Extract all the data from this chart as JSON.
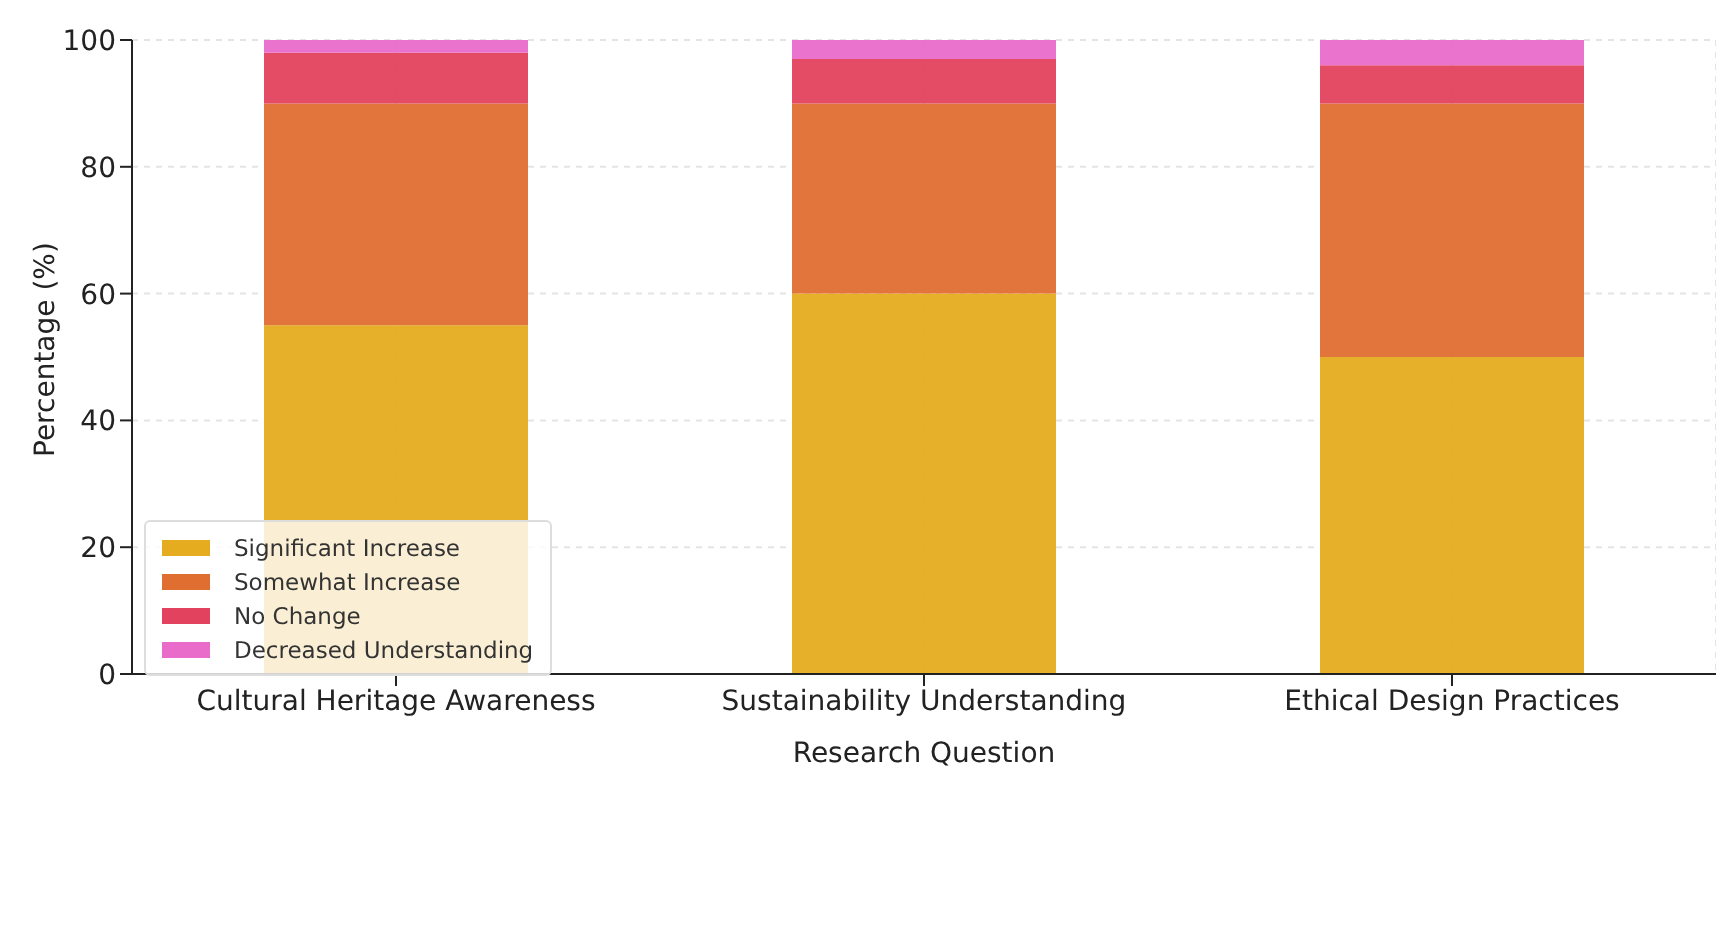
{
  "chart_data": {
    "type": "bar",
    "stacked": true,
    "xlabel": "Research Question",
    "ylabel": "Percentage (%)",
    "categories": [
      "Cultural Heritage Awareness",
      "Sustainability Understanding",
      "Ethical Design Practices"
    ],
    "series": [
      {
        "name": "Significant Increase",
        "color": "#e6ac1f",
        "values": [
          55,
          60,
          50
        ]
      },
      {
        "name": "Somewhat Increase",
        "color": "#e06e30",
        "values": [
          35,
          30,
          40
        ]
      },
      {
        "name": "No Change",
        "color": "#e3425e",
        "values": [
          8,
          7,
          6
        ]
      },
      {
        "name": "Decreased Understanding",
        "color": "#e96ccb",
        "values": [
          2,
          3,
          4
        ]
      }
    ],
    "ylim": [
      0,
      100
    ],
    "yticks": [
      0,
      20,
      40,
      60,
      80,
      100
    ],
    "grid": true,
    "legend": "bottom left"
  }
}
